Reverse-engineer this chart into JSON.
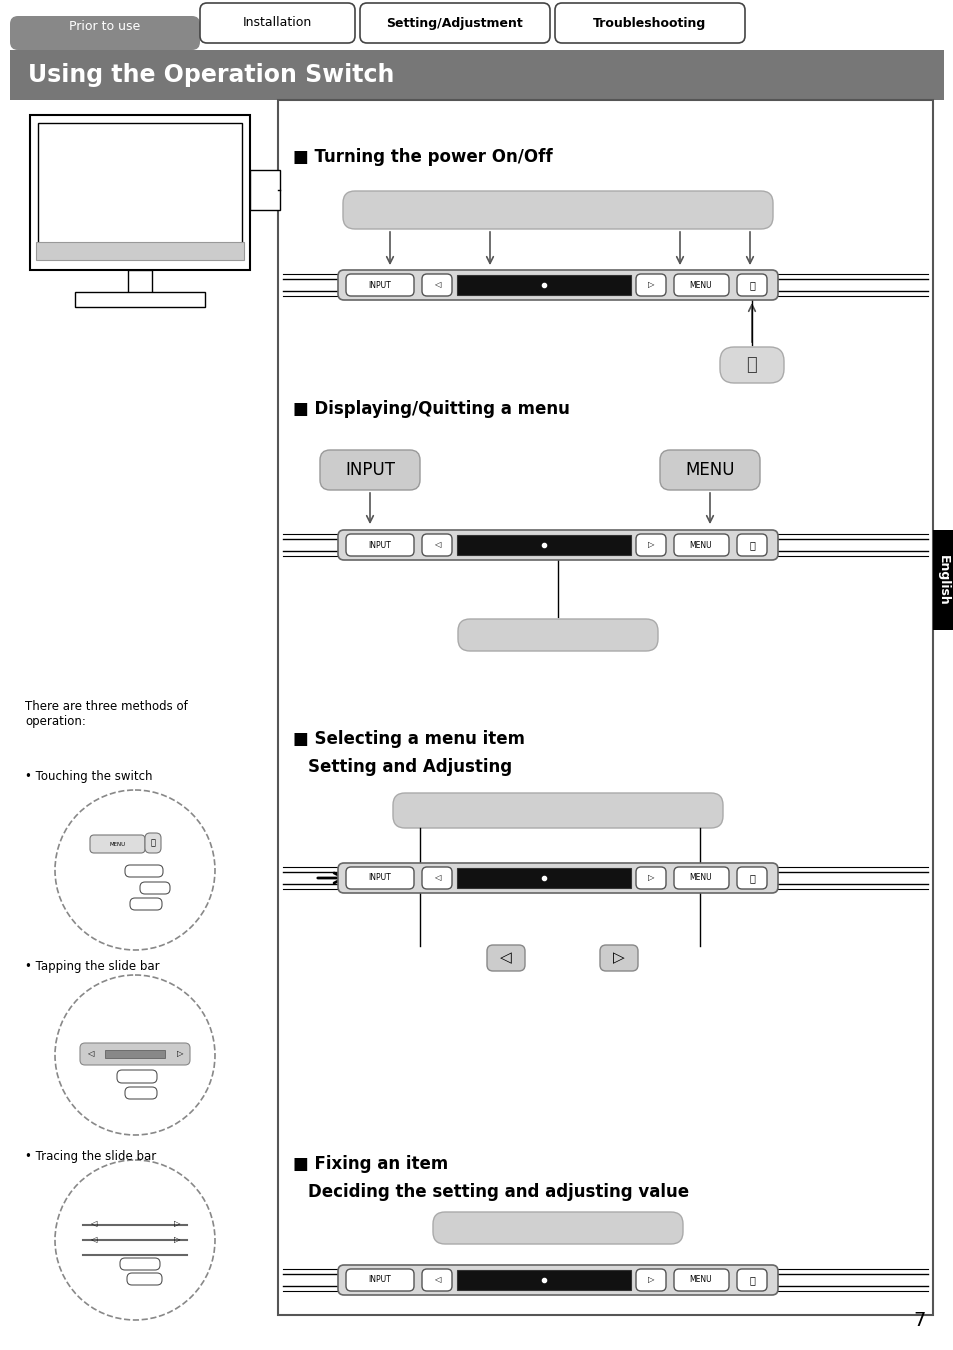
{
  "bg_color": "#ffffff",
  "header_bg": "#777777",
  "header_title": "Using the Operation Switch",
  "tab_prior": "Prior to use",
  "tab_installation": "Installation",
  "tab_setting": "Setting/Adjustment",
  "tab_troubleshooting": "Troubleshooting",
  "section1_title": "■ Turning the power On/Off",
  "section2_title": "■ Displaying/Quitting a menu",
  "section3_title1": "■ Selecting a menu item",
  "section3_title2": "Setting and Adjusting",
  "section4_title1": "■ Fixing an item",
  "section4_title2": "Deciding the setting and adjusting value",
  "left_text1": "There are three methods of\noperation:",
  "left_bullet1": "• Touching the switch",
  "left_bullet2": "• Tapping the slide bar",
  "left_bullet3": "• Tracing the slide bar",
  "side_label": "English",
  "page_number": "7"
}
